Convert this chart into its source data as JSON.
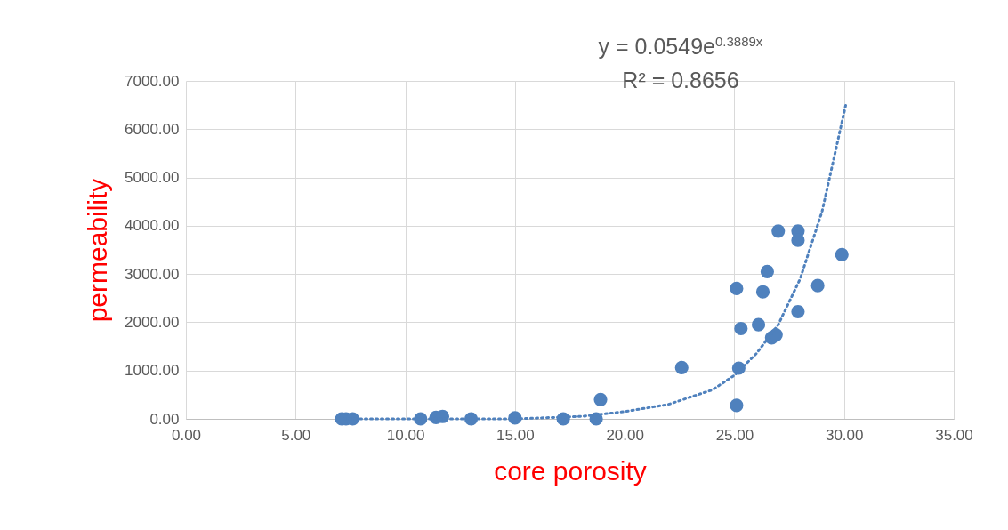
{
  "chart_data": {
    "type": "scatter",
    "xlabel": "core porosity",
    "ylabel": "permeability",
    "xlim": [
      0,
      35
    ],
    "ylim": [
      0,
      7000
    ],
    "xticks": [
      {
        "value": 0,
        "label": "0.00"
      },
      {
        "value": 5,
        "label": "5.00"
      },
      {
        "value": 10,
        "label": "10.00"
      },
      {
        "value": 15,
        "label": "15.00"
      },
      {
        "value": 20,
        "label": "20.00"
      },
      {
        "value": 25,
        "label": "25.00"
      },
      {
        "value": 30,
        "label": "30.00"
      },
      {
        "value": 35,
        "label": "35.00"
      }
    ],
    "yticks": [
      {
        "value": 0,
        "label": "0.00"
      },
      {
        "value": 1000,
        "label": "1000.00"
      },
      {
        "value": 2000,
        "label": "2000.00"
      },
      {
        "value": 3000,
        "label": "3000.00"
      },
      {
        "value": 4000,
        "label": "4000.00"
      },
      {
        "value": 5000,
        "label": "5000.00"
      },
      {
        "value": 6000,
        "label": "6000.00"
      },
      {
        "value": 7000,
        "label": "7000.00"
      }
    ],
    "grid": true,
    "annotations": [
      "y = 0.0549e$^{0.3889x}$",
      "R² = 0.8656"
    ],
    "series": [
      {
        "marker": "circle",
        "color": "#4f81bd",
        "x": [
          7.1,
          7.3,
          7.6,
          10.7,
          11.4,
          11.7,
          13.0,
          15.0,
          17.2,
          18.7,
          18.9,
          22.6,
          25.1,
          25.2,
          25.3,
          25.1,
          26.3,
          26.1,
          26.5,
          26.7,
          26.9,
          27.0,
          27.9,
          27.9,
          27.9,
          28.8,
          29.9
        ],
        "values": [
          0,
          0,
          0,
          0,
          30,
          50,
          0,
          20,
          0,
          0,
          400,
          1060,
          280,
          1050,
          1870,
          2700,
          2630,
          1950,
          3050,
          1680,
          1740,
          3890,
          3890,
          3700,
          2220,
          2760,
          3400
        ]
      },
      {
        "type": "line",
        "color": "#4f81bd",
        "line_style": "dotted",
        "marker": "none",
        "x": [
          7.2,
          10,
          15,
          18,
          20,
          22,
          24,
          25,
          26,
          27,
          28,
          29,
          30.1
        ],
        "values": [
          0,
          0,
          0,
          50,
          150,
          300,
          600,
          900,
          1350,
          1950,
          2900,
          4300,
          6550
        ]
      }
    ]
  }
}
